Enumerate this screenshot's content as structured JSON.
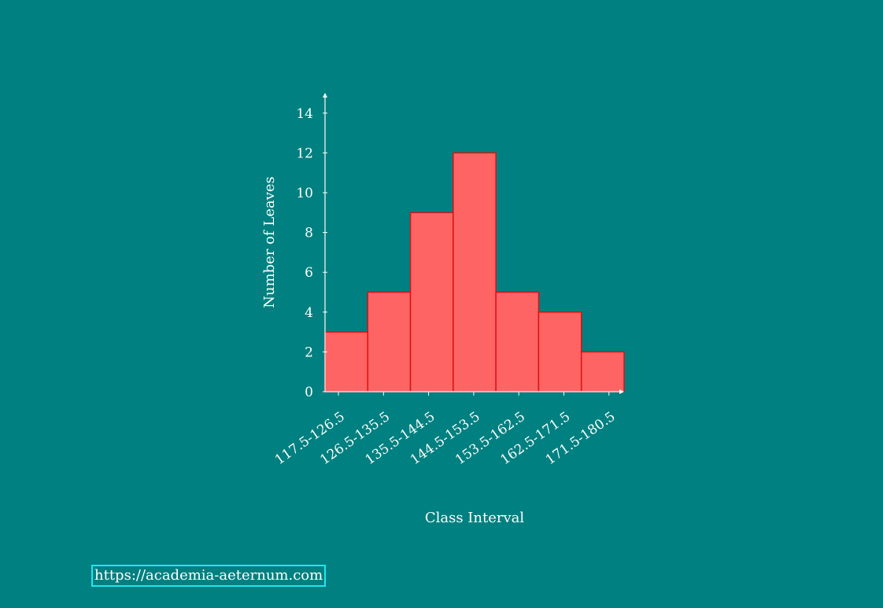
{
  "chart_data": {
    "type": "bar",
    "categories": [
      "117.5-126.5",
      "126.5-135.5",
      "135.5-144.5",
      "144.5-153.5",
      "153.5-162.5",
      "162.5-171.5",
      "171.5-180.5"
    ],
    "values": [
      3,
      5,
      9,
      12,
      5,
      4,
      2
    ],
    "title": "",
    "xlabel": "Class Interval",
    "ylabel": "Number of Leaves",
    "ylim": [
      0,
      15
    ],
    "yticks": [
      "0",
      "2",
      "4",
      "6",
      "8",
      "10",
      "12",
      "14"
    ],
    "grid": false,
    "bar_color": "#ff6464",
    "bar_edge_color": "#dd1111"
  },
  "footer": {
    "url": "https://academia-aeternum.com"
  },
  "colors": {
    "background": "#008080",
    "axis": "#ffffff",
    "link_border": "#22e6f0"
  }
}
